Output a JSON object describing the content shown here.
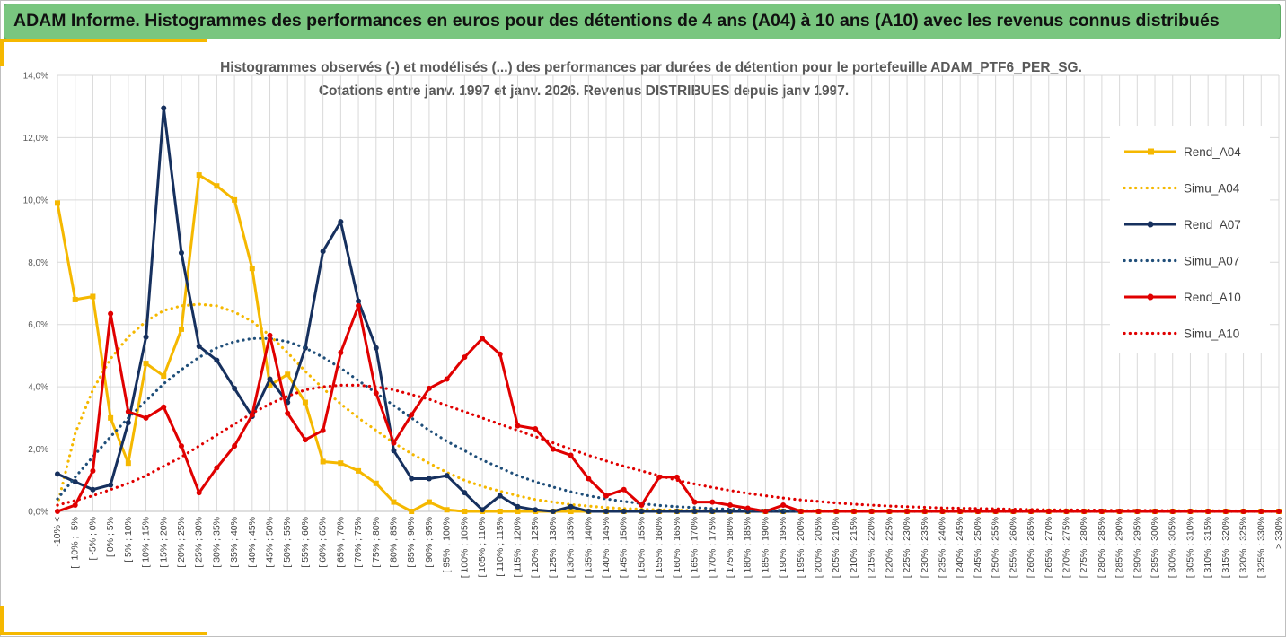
{
  "header": {
    "title": "ADAM Informe. Histogrammes des performances en euros pour des détentions de 4 ans (A04) à 10 ans (A10) avec les revenus connus distribués"
  },
  "chart_data": {
    "type": "line",
    "title_line1": "Histogrammes observés (-) et modélisés (...) des performances par durées de détention pour le portefeuille ADAM_PTF6_PER_SG.",
    "title_line2": "Cotations entre janv. 1997 et janv. 2026. Revenus DISTRIBUES depuis janv 1997.",
    "ylim": [
      0,
      14
    ],
    "yticks": [
      "0,0%",
      "2,0%",
      "4,0%",
      "6,0%",
      "8,0%",
      "10,0%",
      "12,0%",
      "14,0%"
    ],
    "grid": true,
    "legend_position": "right",
    "categories": [
      "-10% <",
      "[ -10% ; -5%",
      "[ -5% ; 0%",
      "[ 0% ; 5%",
      "[ 5% ; 10%",
      "[ 10% ; 15%",
      "[ 15% ; 20%",
      "[ 20% ; 25%",
      "[ 25% ; 30%",
      "[ 30% ; 35%",
      "[ 35% ; 40%",
      "[ 40% ; 45%",
      "[ 45% ; 50%",
      "[ 50% ; 55%",
      "[ 55% ; 60%",
      "[ 60% ; 65%",
      "[ 65% ; 70%",
      "[ 70% ; 75%",
      "[ 75% ; 80%",
      "[ 80% ; 85%",
      "[ 85% ; 90%",
      "[ 90% ; 95%",
      "[ 95% ; 100%",
      "[ 100% ; 105%",
      "[ 105% ; 110%",
      "[ 110% ; 115%",
      "[ 115% ; 120%",
      "[ 120% ; 125%",
      "[ 125% ; 130%",
      "[ 130% ; 135%",
      "[ 135% ; 140%",
      "[ 140% ; 145%",
      "[ 145% ; 150%",
      "[ 150% ; 155%",
      "[ 155% ; 160%",
      "[ 160% ; 165%",
      "[ 165% ; 170%",
      "[ 170% ; 175%",
      "[ 175% ; 180%",
      "[ 180% ; 185%",
      "[ 185% ; 190%",
      "[ 190% ; 195%",
      "[ 195% ; 200%",
      "[ 200% ; 205%",
      "[ 205% ; 210%",
      "[ 210% ; 215%",
      "[ 215% ; 220%",
      "[ 220% ; 225%",
      "[ 225% ; 230%",
      "[ 230% ; 235%",
      "[ 235% ; 240%",
      "[ 240% ; 245%",
      "[ 245% ; 250%",
      "[ 250% ; 255%",
      "[ 255% ; 260%",
      "[ 260% ; 265%",
      "[ 265% ; 270%",
      "[ 270% ; 275%",
      "[ 275% ; 280%",
      "[ 280% ; 285%",
      "[ 285% ; 290%",
      "[ 290% ; 295%",
      "[ 295% ; 300%",
      "[ 300% ; 305%",
      "[ 305% ; 310%",
      "[ 310% ; 315%",
      "[ 315% ; 320%",
      "[ 320% ; 325%",
      "[ 325% ; 330%",
      "> 330%"
    ],
    "series": [
      {
        "name": "Rend_A04",
        "style": "solid-square",
        "color": "#f5b800",
        "values": [
          9.9,
          6.8,
          6.9,
          3.0,
          1.55,
          4.75,
          4.35,
          5.85,
          10.8,
          10.45,
          10.0,
          7.8,
          4.05,
          4.4,
          3.5,
          1.6,
          1.55,
          1.3,
          0.9,
          0.3,
          0.0,
          0.3,
          0.05,
          0,
          0,
          0,
          0,
          0,
          0,
          0,
          0,
          0,
          0,
          0,
          0,
          0,
          0,
          0,
          0,
          0,
          0,
          0,
          0,
          0,
          0,
          0,
          0,
          0,
          0,
          0,
          0,
          0,
          0,
          0,
          0,
          0,
          0,
          0,
          0,
          0,
          0,
          0,
          0,
          0,
          0,
          0,
          0,
          0,
          0,
          0
        ]
      },
      {
        "name": "Simu_A04",
        "style": "dotted",
        "color": "#f5b800",
        "values": [
          0.2,
          2.5,
          3.9,
          4.9,
          5.6,
          6.1,
          6.45,
          6.6,
          6.65,
          6.6,
          6.4,
          6.1,
          5.65,
          5.1,
          4.5,
          3.95,
          3.45,
          3.0,
          2.6,
          2.2,
          1.85,
          1.55,
          1.25,
          1.0,
          0.8,
          0.65,
          0.5,
          0.38,
          0.3,
          0.22,
          0.17,
          0.12,
          0.09,
          0.07,
          0.05,
          0.04,
          0.03,
          0.02,
          0.01,
          0.01,
          0,
          0,
          0,
          0,
          0,
          0,
          0,
          0,
          0,
          0,
          0,
          0,
          0,
          0,
          0,
          0,
          0,
          0,
          0,
          0,
          0,
          0,
          0,
          0,
          0,
          0,
          0,
          0,
          0,
          0
        ]
      },
      {
        "name": "Rend_A07",
        "style": "solid-dot",
        "color": "#16305e",
        "values": [
          1.2,
          0.95,
          0.7,
          0.85,
          2.85,
          5.6,
          12.95,
          8.3,
          5.3,
          4.85,
          3.95,
          3.05,
          4.25,
          3.5,
          5.25,
          8.35,
          9.3,
          6.75,
          5.25,
          1.95,
          1.05,
          1.05,
          1.15,
          0.6,
          0.05,
          0.5,
          0.15,
          0.05,
          0.0,
          0.15,
          0.0,
          0,
          0,
          0,
          0,
          0,
          0,
          0,
          0,
          0,
          0,
          0,
          0,
          0,
          0,
          0,
          0,
          0,
          0,
          0,
          0,
          0,
          0,
          0,
          0,
          0,
          0,
          0,
          0,
          0,
          0,
          0,
          0,
          0,
          0,
          0,
          0,
          0,
          0,
          0
        ]
      },
      {
        "name": "Simu_A07",
        "style": "dotted",
        "color": "#1f4e79",
        "values": [
          0.4,
          1.1,
          1.75,
          2.4,
          3.0,
          3.55,
          4.1,
          4.55,
          4.95,
          5.25,
          5.45,
          5.55,
          5.55,
          5.45,
          5.25,
          4.95,
          4.6,
          4.2,
          3.8,
          3.4,
          3.0,
          2.6,
          2.25,
          1.95,
          1.65,
          1.4,
          1.15,
          0.95,
          0.78,
          0.63,
          0.5,
          0.4,
          0.32,
          0.25,
          0.19,
          0.15,
          0.12,
          0.09,
          0.07,
          0.05,
          0.04,
          0.03,
          0.02,
          0.02,
          0.01,
          0.01,
          0,
          0,
          0,
          0,
          0,
          0,
          0,
          0,
          0,
          0,
          0,
          0,
          0,
          0,
          0,
          0,
          0,
          0,
          0,
          0,
          0,
          0,
          0,
          0
        ]
      },
      {
        "name": "Rend_A10",
        "style": "solid-dot",
        "color": "#e00000",
        "values": [
          0.0,
          0.2,
          1.3,
          6.35,
          3.2,
          3.0,
          3.35,
          2.1,
          0.6,
          1.4,
          2.1,
          3.1,
          5.65,
          3.15,
          2.3,
          2.6,
          5.1,
          6.6,
          3.8,
          2.2,
          3.1,
          3.95,
          4.25,
          4.95,
          5.55,
          5.05,
          2.75,
          2.65,
          2.0,
          1.8,
          1.05,
          0.5,
          0.7,
          0.2,
          1.1,
          1.1,
          0.3,
          0.3,
          0.2,
          0.1,
          0.0,
          0.2,
          0.0,
          0,
          0,
          0,
          0,
          0,
          0,
          0,
          0,
          0,
          0,
          0,
          0,
          0,
          0,
          0,
          0,
          0,
          0,
          0,
          0,
          0,
          0,
          0,
          0,
          0,
          0,
          0
        ]
      },
      {
        "name": "Simu_A10",
        "style": "dotted",
        "color": "#e00000",
        "values": [
          0.2,
          0.35,
          0.5,
          0.7,
          0.9,
          1.15,
          1.45,
          1.75,
          2.1,
          2.45,
          2.8,
          3.15,
          3.45,
          3.7,
          3.9,
          4.0,
          4.05,
          4.05,
          4.0,
          3.9,
          3.75,
          3.6,
          3.4,
          3.2,
          3.0,
          2.8,
          2.6,
          2.4,
          2.2,
          2.0,
          1.8,
          1.62,
          1.45,
          1.3,
          1.15,
          1.0,
          0.88,
          0.77,
          0.67,
          0.58,
          0.5,
          0.43,
          0.37,
          0.32,
          0.27,
          0.23,
          0.2,
          0.17,
          0.15,
          0.13,
          0.11,
          0.1,
          0.09,
          0.08,
          0.07,
          0.06,
          0.05,
          0.05,
          0.04,
          0.04,
          0.03,
          0.03,
          0.03,
          0.02,
          0.02,
          0.02,
          0.02,
          0.01,
          0.01,
          0.01
        ]
      }
    ]
  }
}
